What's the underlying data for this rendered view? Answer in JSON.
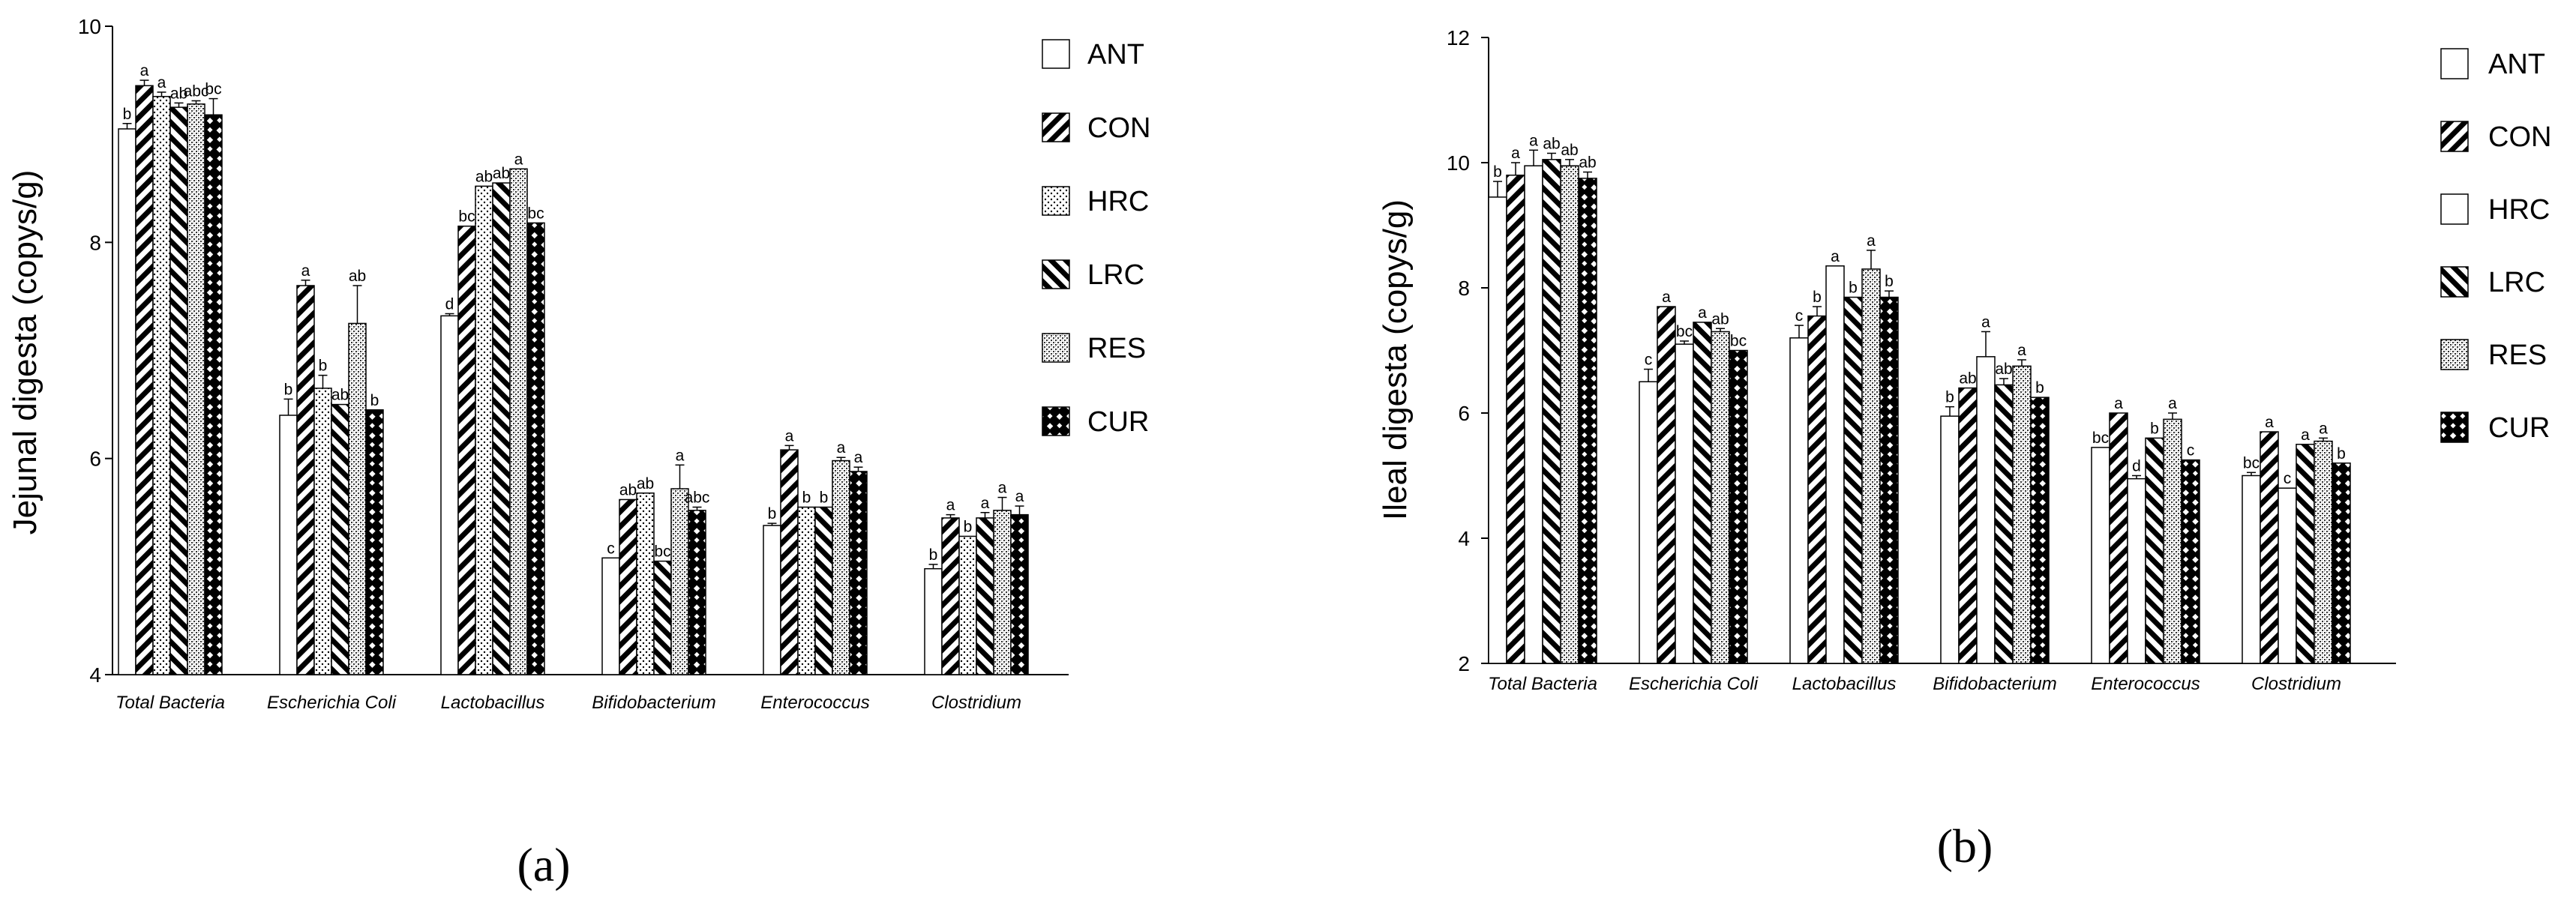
{
  "panel_labels": [
    "(a)",
    "(b)"
  ],
  "series_names": [
    "ANT",
    "CON",
    "HRC",
    "LRC",
    "RES",
    "CUR"
  ],
  "categories": [
    "Total Bacteria",
    "Escherichia Coli",
    "Lactobacillus",
    "Bifidobacterium",
    "Enterococcus",
    "Clostridium"
  ],
  "chart_data": [
    {
      "type": "bar",
      "panel": "(a)",
      "ylabel": "Jejunal digesta (copys/g)",
      "ylim": [
        4,
        10
      ],
      "yticks": [
        4,
        6,
        8,
        10
      ],
      "ytick_labels": [
        "4",
        "6",
        "8",
        "10"
      ],
      "categories": [
        "Total Bacteria",
        "Escherichia Coli",
        "Lactobacillus",
        "Bifidobacterium",
        "Enterococcus",
        "Clostridium"
      ],
      "legend_position": "right",
      "series": [
        {
          "name": "ANT",
          "pattern": "plain",
          "values": [
            9.05,
            6.4,
            7.32,
            5.08,
            5.38,
            4.98
          ],
          "errors": [
            0.05,
            0.15,
            0.02,
            0.0,
            0.02,
            0.04
          ],
          "labels": [
            "b",
            "b",
            "d",
            "c",
            "b",
            "b"
          ]
        },
        {
          "name": "CON",
          "pattern": "backslash",
          "values": [
            9.45,
            7.6,
            8.15,
            5.62,
            6.08,
            5.45
          ],
          "errors": [
            0.05,
            0.05,
            0.0,
            0.0,
            0.04,
            0.03
          ],
          "labels": [
            "a",
            "a",
            "bc",
            "ab",
            "a",
            "a"
          ]
        },
        {
          "name": "HRC",
          "pattern": "dots",
          "values": [
            9.35,
            6.65,
            8.52,
            5.68,
            5.55,
            5.28
          ],
          "errors": [
            0.04,
            0.12,
            0.0,
            0.0,
            0.0,
            0.0
          ],
          "labels": [
            "a",
            "b",
            "ab",
            "ab",
            "b",
            "b"
          ]
        },
        {
          "name": "LRC",
          "pattern": "slash",
          "values": [
            9.25,
            6.5,
            8.55,
            5.05,
            5.55,
            5.45
          ],
          "errors": [
            0.04,
            0.0,
            0.0,
            0.0,
            0.0,
            0.05
          ],
          "labels": [
            "ab",
            "ab",
            "ab",
            "bc",
            "b",
            "a"
          ]
        },
        {
          "name": "RES",
          "pattern": "fine",
          "values": [
            9.28,
            7.25,
            8.68,
            5.72,
            5.98,
            5.52
          ],
          "errors": [
            0.03,
            0.35,
            0.0,
            0.22,
            0.03,
            0.12
          ],
          "labels": [
            "abc",
            "ab",
            "a",
            "a",
            "a",
            "a"
          ]
        },
        {
          "name": "CUR",
          "pattern": "checker",
          "values": [
            9.18,
            6.45,
            8.18,
            5.52,
            5.88,
            5.48
          ],
          "errors": [
            0.15,
            0.0,
            0.0,
            0.03,
            0.04,
            0.08
          ],
          "labels": [
            "bc",
            "b",
            "bc",
            "abc",
            "a",
            "a"
          ]
        }
      ]
    },
    {
      "type": "bar",
      "panel": "(b)",
      "ylabel": "Ileal digesta (copys/g)",
      "ylim": [
        2,
        12
      ],
      "yticks": [
        2,
        4,
        6,
        8,
        10,
        12
      ],
      "ytick_labels": [
        "2",
        "4",
        "6",
        "8",
        "10",
        "12"
      ],
      "categories": [
        "Total Bacteria",
        "Escherichia Coli",
        "Lactobacillus",
        "Bifidobacterium",
        "Enterococcus",
        "Clostridium"
      ],
      "legend_position": "right",
      "series": [
        {
          "name": "ANT",
          "pattern": "plain",
          "values": [
            9.45,
            6.5,
            7.2,
            5.95,
            5.45,
            5.0
          ],
          "errors": [
            0.25,
            0.2,
            0.2,
            0.15,
            0.0,
            0.05
          ],
          "labels": [
            "b",
            "c",
            "c",
            "b",
            "bc",
            "bc"
          ]
        },
        {
          "name": "CON",
          "pattern": "backslash",
          "values": [
            9.8,
            7.7,
            7.55,
            6.4,
            6.0,
            5.7
          ],
          "errors": [
            0.2,
            0.0,
            0.15,
            0.0,
            0.0,
            0.0
          ],
          "labels": [
            "a",
            "a",
            "b",
            "ab",
            "a",
            "a"
          ]
        },
        {
          "name": "HRC",
          "pattern": "plain",
          "values": [
            9.95,
            7.1,
            8.35,
            6.9,
            4.95,
            4.8
          ],
          "errors": [
            0.25,
            0.05,
            0.0,
            0.4,
            0.05,
            0.0
          ],
          "labels": [
            "a",
            "bc",
            "a",
            "a",
            "d",
            "c"
          ]
        },
        {
          "name": "LRC",
          "pattern": "slash",
          "values": [
            10.05,
            7.45,
            7.85,
            6.45,
            5.6,
            5.5
          ],
          "errors": [
            0.1,
            0.0,
            0.0,
            0.1,
            0.0,
            0.0
          ],
          "labels": [
            "ab",
            "a",
            "b",
            "ab",
            "b",
            "a"
          ]
        },
        {
          "name": "RES",
          "pattern": "fine",
          "values": [
            9.95,
            7.3,
            8.3,
            6.75,
            5.9,
            5.55
          ],
          "errors": [
            0.1,
            0.05,
            0.3,
            0.1,
            0.1,
            0.05
          ],
          "labels": [
            "ab",
            "ab",
            "a",
            "a",
            "a",
            "a"
          ]
        },
        {
          "name": "CUR",
          "pattern": "checker",
          "values": [
            9.75,
            7.0,
            7.85,
            6.25,
            5.25,
            5.2
          ],
          "errors": [
            0.1,
            0.0,
            0.1,
            0.0,
            0.0,
            0.0
          ],
          "labels": [
            "ab",
            "bc",
            "b",
            "b",
            "c",
            "b"
          ]
        }
      ]
    }
  ]
}
